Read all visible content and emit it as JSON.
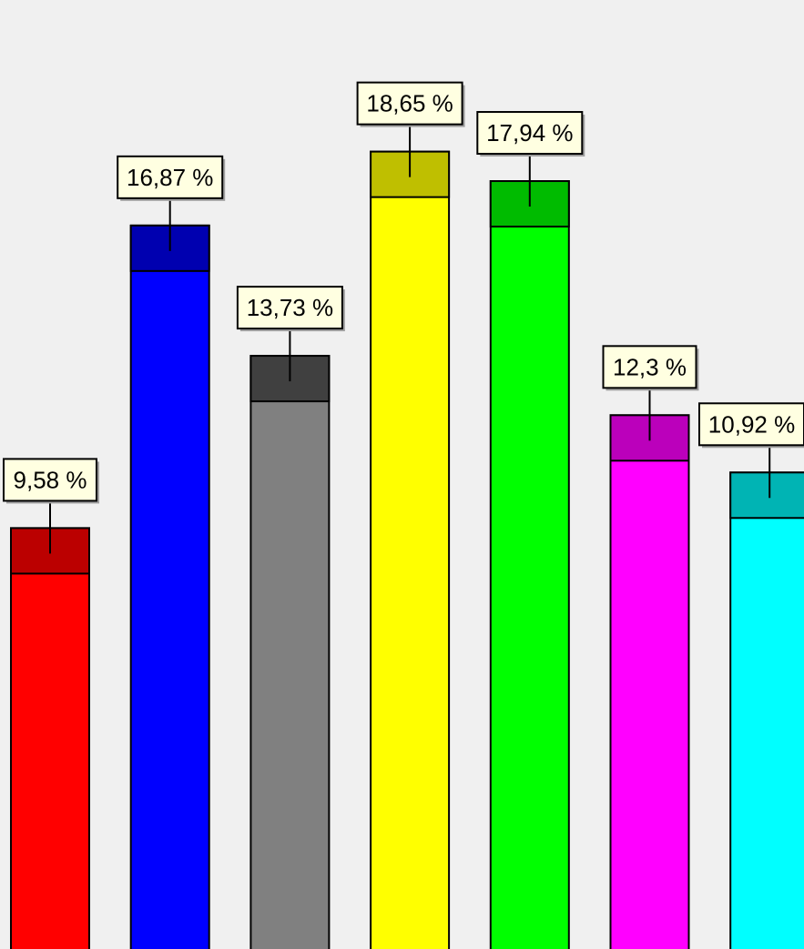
{
  "chart_data": {
    "type": "bar",
    "title": "",
    "xlabel": "",
    "ylabel": "",
    "values": [
      9.58,
      16.87,
      13.73,
      18.65,
      17.94,
      12.3,
      10.92
    ],
    "labels": [
      "9,58 %",
      "16,87 %",
      "13,73 %",
      "18,65 %",
      "17,94 %",
      "12,3 %",
      "10,92 %"
    ],
    "colors": [
      "#ff0000",
      "#0000ff",
      "#808080",
      "#ffff00",
      "#00ff00",
      "#ff00ff",
      "#00ffff"
    ],
    "cap_colors": [
      "#bb0000",
      "#0000b0",
      "#404040",
      "#bfbf00",
      "#00bb00",
      "#bb00bb",
      "#00b4b4"
    ],
    "label_background": "#ffffe1",
    "grid": false,
    "legend": "none"
  }
}
